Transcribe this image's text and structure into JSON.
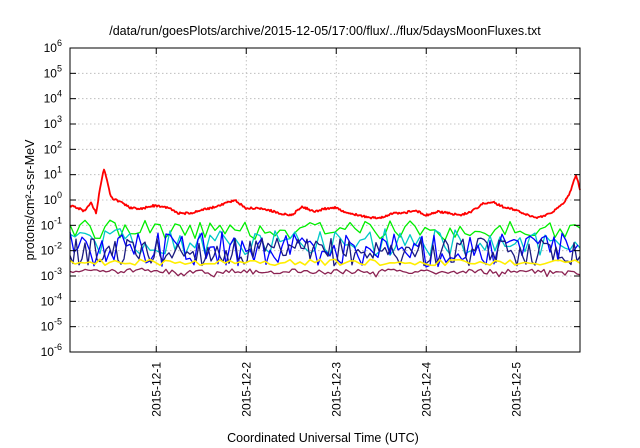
{
  "chart_data": {
    "type": "line",
    "title": "/data/run/goesPlots/archive/2015-12-05/17:00/flux/../flux/5daysMoonFluxes.txt",
    "xlabel": "Coordinated Universal Time (UTC)",
    "ylabel": "protons/cm²-s-sr-MeV",
    "y_scale": "log",
    "ylim": [
      1e-06,
      1000000.0
    ],
    "xlim": [
      "2015-11-30T01:00",
      "2015-12-05T17:00"
    ],
    "grid": true,
    "legend": "none",
    "x_ticks": [
      "2015-12-1",
      "2015-12-2",
      "2015-12-3",
      "2015-12-4",
      "2015-12-5"
    ],
    "y_ticks": [
      {
        "base": "10",
        "exp": "6"
      },
      {
        "base": "10",
        "exp": "5"
      },
      {
        "base": "10",
        "exp": "4"
      },
      {
        "base": "10",
        "exp": "3"
      },
      {
        "base": "10",
        "exp": "2"
      },
      {
        "base": "10",
        "exp": "1"
      },
      {
        "base": "10",
        "exp": "0"
      },
      {
        "base": "10",
        "exp": "-1"
      },
      {
        "base": "10",
        "exp": "-2"
      },
      {
        "base": "10",
        "exp": "-3"
      },
      {
        "base": "10",
        "exp": "-4"
      },
      {
        "base": "10",
        "exp": "-5"
      },
      {
        "base": "10",
        "exp": "-6"
      }
    ],
    "series": [
      {
        "color": "#ff0000",
        "x": [
          "2015-11-30T01:00",
          "2015-11-30T03:00",
          "2015-11-30T05:00",
          "2015-11-30T06:30",
          "2015-11-30T08:00",
          "2015-11-30T09:00",
          "2015-11-30T10:00",
          "2015-11-30T12:00",
          "2015-11-30T14:00",
          "2015-11-30T17:00",
          "2015-11-30T20:00",
          "2015-11-30T23:00",
          "2015-12-01T03:00",
          "2015-12-01T06:00",
          "2015-12-01T09:00",
          "2015-12-01T12:00",
          "2015-12-01T15:00",
          "2015-12-01T18:00",
          "2015-12-01T21:00",
          "2015-12-02T00:00",
          "2015-12-02T03:00",
          "2015-12-02T06:00",
          "2015-12-02T09:00",
          "2015-12-02T12:00",
          "2015-12-02T15:00",
          "2015-12-02T18:00",
          "2015-12-02T21:00",
          "2015-12-03T00:00",
          "2015-12-03T03:00",
          "2015-12-03T06:00",
          "2015-12-03T09:00",
          "2015-12-03T12:00",
          "2015-12-03T15:00",
          "2015-12-03T18:00",
          "2015-12-03T21:00",
          "2015-12-04T00:00",
          "2015-12-04T03:00",
          "2015-12-04T06:00",
          "2015-12-04T09:00",
          "2015-12-04T12:00",
          "2015-12-04T15:00",
          "2015-12-04T18:00",
          "2015-12-04T21:00",
          "2015-12-05T00:00",
          "2015-12-05T03:00",
          "2015-12-05T06:00",
          "2015-12-05T09:00",
          "2015-12-05T12:00",
          "2015-12-05T14:00",
          "2015-12-05T15:00",
          "2015-12-05T16:00",
          "2015-12-05T17:00"
        ],
        "y": [
          0.6,
          0.5,
          0.35,
          0.8,
          0.3,
          3,
          18,
          1.2,
          0.9,
          0.5,
          0.45,
          0.6,
          0.5,
          0.3,
          0.3,
          0.4,
          0.5,
          0.7,
          1.0,
          0.45,
          0.5,
          0.4,
          0.3,
          0.25,
          0.55,
          0.35,
          0.45,
          0.5,
          0.3,
          0.25,
          0.2,
          0.2,
          0.3,
          0.3,
          0.4,
          0.25,
          0.35,
          0.3,
          0.25,
          0.35,
          0.7,
          0.8,
          0.5,
          0.4,
          0.25,
          0.2,
          0.3,
          0.6,
          1.5,
          4,
          10,
          2.5
        ]
      },
      {
        "color": "#00ee00",
        "x": [
          "2015-11-30T01:00",
          "2015-12-01T00:00",
          "2015-12-02T00:00",
          "2015-12-03T00:00",
          "2015-12-04T00:00",
          "2015-12-05T00:00",
          "2015-12-05T17:00"
        ],
        "y": [
          0.07,
          0.07,
          0.06,
          0.07,
          0.06,
          0.06,
          0.08
        ]
      },
      {
        "color": "#00c8c8",
        "x": [
          "2015-11-30T01:00",
          "2015-12-01T00:00",
          "2015-12-02T00:00",
          "2015-12-03T00:00",
          "2015-12-04T00:00",
          "2015-12-05T00:00",
          "2015-12-05T17:00"
        ],
        "y": [
          0.025,
          0.022,
          0.02,
          0.022,
          0.02,
          0.02,
          0.025
        ]
      },
      {
        "color": "#0000ff",
        "x": [
          "2015-11-30T01:00",
          "2015-12-01T00:00",
          "2015-12-02T00:00",
          "2015-12-03T00:00",
          "2015-12-04T00:00",
          "2015-12-05T00:00",
          "2015-12-05T17:00"
        ],
        "y": [
          0.012,
          0.012,
          0.011,
          0.012,
          0.011,
          0.012,
          0.013
        ]
      },
      {
        "color": "#1a1a80",
        "x": [
          "2015-11-30T01:00",
          "2015-12-01T00:00",
          "2015-12-02T00:00",
          "2015-12-03T00:00",
          "2015-12-04T00:00",
          "2015-12-05T00:00",
          "2015-12-05T17:00"
        ],
        "y": [
          0.009,
          0.009,
          0.0085,
          0.009,
          0.0085,
          0.009,
          0.01
        ]
      },
      {
        "color": "#ffee00",
        "x": [
          "2015-11-30T01:00",
          "2015-12-01T00:00",
          "2015-12-02T00:00",
          "2015-12-03T00:00",
          "2015-12-04T00:00",
          "2015-12-05T00:00",
          "2015-12-05T17:00"
        ],
        "y": [
          0.0035,
          0.0035,
          0.0034,
          0.0035,
          0.0034,
          0.0035,
          0.0035
        ]
      },
      {
        "color": "#8b2252",
        "x": [
          "2015-11-30T01:00",
          "2015-12-01T00:00",
          "2015-12-02T00:00",
          "2015-12-03T00:00",
          "2015-12-04T00:00",
          "2015-12-05T00:00",
          "2015-12-05T17:00"
        ],
        "y": [
          0.0016,
          0.0016,
          0.0015,
          0.0015,
          0.0015,
          0.0015,
          0.0014
        ]
      }
    ]
  }
}
